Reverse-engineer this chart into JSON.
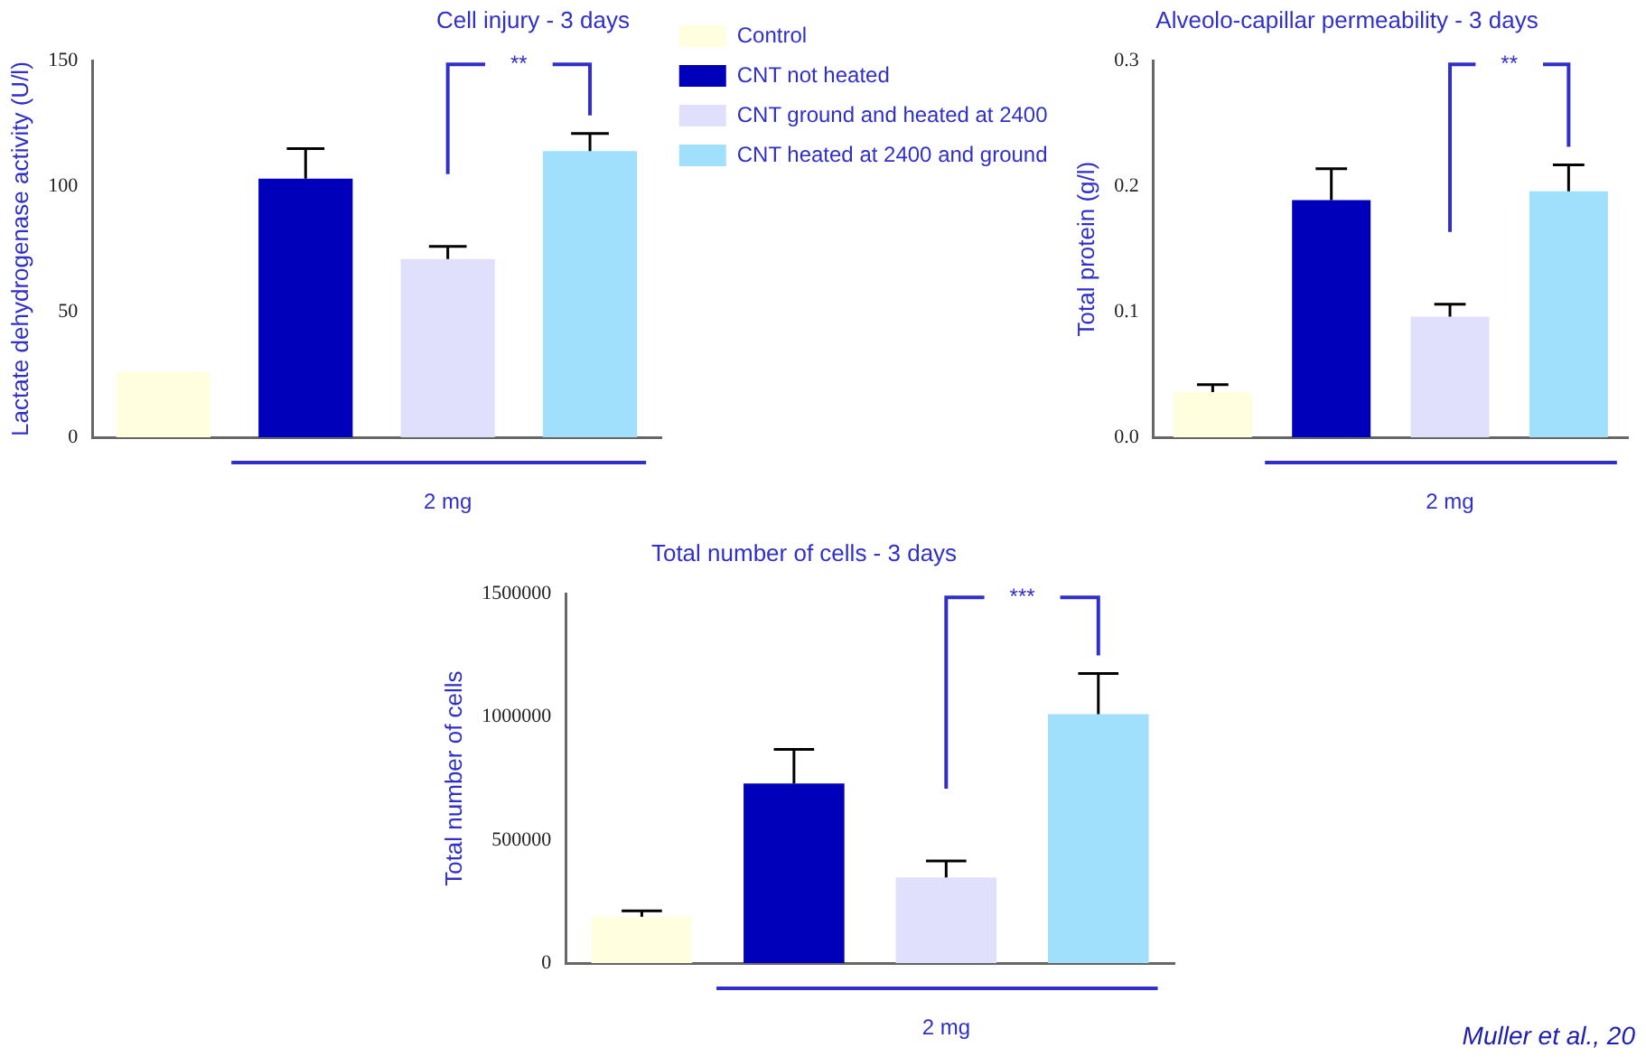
{
  "chart_data": [
    {
      "type": "bar",
      "title": "Cell injury - 3 days",
      "ylabel": "Lactate dehydrogenase activity (U/l)",
      "categories": [
        null,
        null,
        null,
        null
      ],
      "series": [
        {
          "name": "Control",
          "color": "#ffffe0",
          "values": [
            26,
            null,
            null,
            null
          ]
        },
        {
          "name": "CNT not heated",
          "color": "#0000bb",
          "values": [
            null,
            103,
            null,
            null
          ],
          "errors": [
            null,
            12,
            null,
            null
          ]
        },
        {
          "name": "CNT ground and heated at 2400",
          "color": "#e0e0fc",
          "values": [
            null,
            null,
            71,
            null
          ],
          "errors": [
            null,
            null,
            5,
            null
          ]
        },
        {
          "name": "CNT heated at 2400 and ground",
          "color": "#a0e0fc",
          "values": [
            null,
            null,
            null,
            114
          ],
          "errors": [
            null,
            null,
            null,
            7
          ]
        }
      ],
      "ylim": [
        0,
        150
      ],
      "yticks": [
        0,
        50,
        100,
        150
      ],
      "tick_labels": "y",
      "legend": "right",
      "annotations": [
        "**",
        "2 mg"
      ]
    },
    {
      "type": "bar",
      "title": "Alveolo-capillar permeability - 3 days",
      "ylabel": "Total protein (g/l)",
      "categories": [
        null,
        null,
        null,
        null
      ],
      "series": [
        {
          "color": "#ffffe0",
          "values": [
            0.036,
            null,
            null,
            null
          ],
          "errors": [
            0.006,
            null,
            null,
            null
          ]
        },
        {
          "color": "#0000bb",
          "values": [
            null,
            0.189,
            null,
            null
          ],
          "errors": [
            null,
            0.025,
            null,
            null
          ]
        },
        {
          "color": "#e0e0fc",
          "values": [
            null,
            null,
            0.096,
            null
          ],
          "errors": [
            null,
            null,
            0.01,
            null
          ]
        },
        {
          "color": "#a0e0fc",
          "values": [
            null,
            null,
            null,
            0.196
          ],
          "errors": [
            null,
            null,
            null,
            0.021
          ]
        }
      ],
      "ylim": [
        0,
        0.3
      ],
      "yticks": [
        {
          "value": 0,
          "label": "0.0"
        },
        0.1,
        0.2,
        0.3
      ],
      "tick_labels": "y",
      "annotations": [
        "**",
        "2 mg"
      ]
    },
    {
      "type": "bar",
      "title": "Total number of cells - 3 days",
      "ylabel": "Total number of cells",
      "categories": [
        null,
        null,
        null,
        null
      ],
      "series": [
        {
          "color": "#ffffe0",
          "values": [
            188000,
            null,
            null,
            null
          ],
          "errors": [
            24000,
            null,
            null,
            null
          ]
        },
        {
          "color": "#0000bb",
          "values": [
            null,
            729000,
            null,
            null
          ],
          "errors": [
            null,
            139000,
            null,
            null
          ]
        },
        {
          "color": "#e0e0fc",
          "values": [
            null,
            null,
            348000,
            null
          ],
          "errors": [
            null,
            null,
            67000,
            null
          ]
        },
        {
          "color": "#a0e0fc",
          "values": [
            null,
            null,
            null,
            1011000
          ],
          "errors": [
            null,
            null,
            null,
            165000
          ]
        }
      ],
      "ylim": [
        0,
        1500000
      ],
      "yticks": [
        0,
        500000,
        1000000,
        1500000
      ],
      "tick_labels": "y",
      "annotations": [
        "***",
        "2 mg",
        "Muller et al., 20"
      ]
    }
  ]
}
